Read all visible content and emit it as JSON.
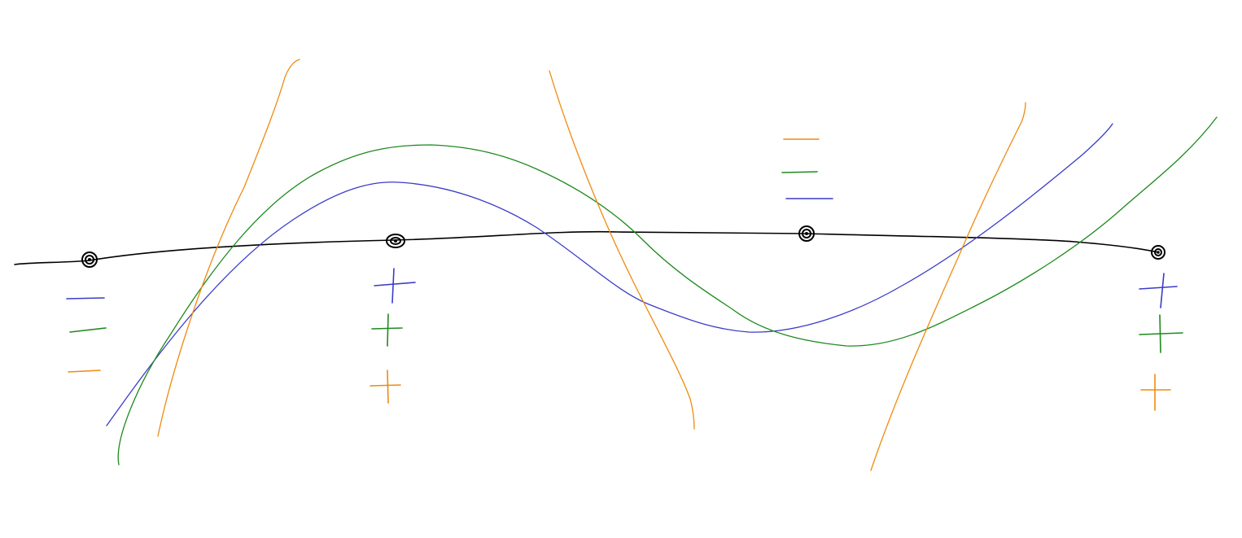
{
  "colors": {
    "background": "#ffffff",
    "axis": "#000000",
    "blue": "#3b3bc9",
    "green": "#1f8a1f",
    "orange": "#f08a10"
  },
  "axis_points": [
    {
      "label": ""
    },
    {
      "label": ""
    },
    {
      "label": ""
    },
    {
      "label": ""
    }
  ],
  "curves": [
    {
      "id": "black-number-line",
      "color": "axis"
    },
    {
      "id": "blue-curve",
      "color": "blue"
    },
    {
      "id": "green-curve",
      "color": "green"
    },
    {
      "id": "orange-curve",
      "color": "orange"
    }
  ],
  "sign_groups": [
    {
      "signs": [
        "-",
        "-",
        "-"
      ],
      "colors": [
        "blue",
        "green",
        "orange"
      ]
    },
    {
      "signs": [
        "+",
        "+",
        "+"
      ],
      "colors": [
        "blue",
        "green",
        "orange"
      ]
    },
    {
      "signs": [
        "-",
        "-",
        "-"
      ],
      "colors": [
        "orange",
        "green",
        "blue"
      ]
    },
    {
      "signs": [
        "+",
        "+",
        "+"
      ],
      "colors": [
        "blue",
        "green",
        "orange"
      ]
    }
  ]
}
